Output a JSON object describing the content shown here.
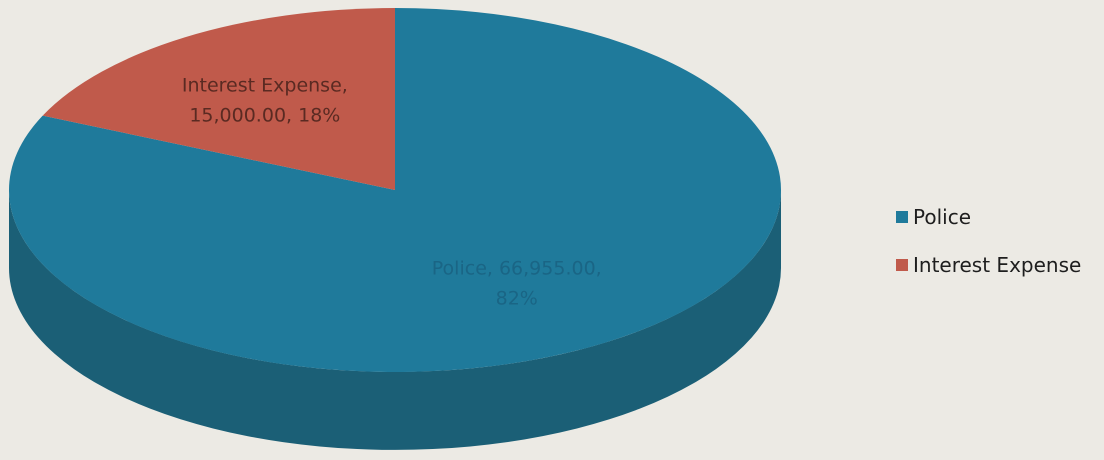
{
  "chart_data": {
    "type": "pie",
    "style": "3d",
    "title": "",
    "slices": [
      {
        "name": "Police",
        "value": 66955.0,
        "percent": 82,
        "label_lines": [
          "Police, 66,955.00,",
          "82%"
        ],
        "color": "#1f7a9b",
        "side_color": "#1b5f76",
        "label_color": "#1a6585"
      },
      {
        "name": "Interest Expense",
        "value": 15000.0,
        "percent": 18,
        "label_lines": [
          "Interest Expense,",
          "15,000.00, 18%"
        ],
        "color": "#c05a4b",
        "side_color": "#9a4336",
        "label_color": "#5a2a22"
      }
    ],
    "legend": {
      "position": "right",
      "items": [
        "Police",
        "Interest Expense"
      ]
    }
  }
}
